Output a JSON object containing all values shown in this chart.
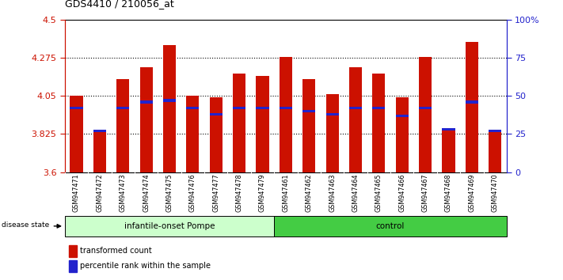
{
  "title": "GDS4410 / 210056_at",
  "samples": [
    "GSM947471",
    "GSM947472",
    "GSM947473",
    "GSM947474",
    "GSM947475",
    "GSM947476",
    "GSM947477",
    "GSM947478",
    "GSM947479",
    "GSM947461",
    "GSM947462",
    "GSM947463",
    "GSM947464",
    "GSM947465",
    "GSM947466",
    "GSM947467",
    "GSM947468",
    "GSM947469",
    "GSM947470"
  ],
  "transformed_counts": [
    4.05,
    3.84,
    4.15,
    4.22,
    4.35,
    4.05,
    4.04,
    4.18,
    4.17,
    4.28,
    4.15,
    4.06,
    4.22,
    4.18,
    4.04,
    4.28,
    3.85,
    4.37,
    3.84
  ],
  "percentile_ranks": [
    0.42,
    0.27,
    0.42,
    0.46,
    0.47,
    0.42,
    0.38,
    0.42,
    0.42,
    0.42,
    0.4,
    0.38,
    0.42,
    0.42,
    0.37,
    0.42,
    0.28,
    0.46,
    0.27
  ],
  "bar_color": "#cc1100",
  "blue_color": "#2222cc",
  "y_min": 3.6,
  "y_max": 4.5,
  "yticks_left": [
    3.6,
    3.825,
    4.05,
    4.275,
    4.5
  ],
  "yticks_right": [
    0,
    25,
    50,
    75,
    100
  ],
  "group1_label": "infantile-onset Pompe",
  "group2_label": "control",
  "group1_count": 9,
  "group2_count": 10,
  "disease_state_label": "disease state",
  "legend1": "transformed count",
  "legend2": "percentile rank within the sample",
  "bar_width": 0.55,
  "bg_color": "#ffffff",
  "plot_bg": "#ffffff",
  "axis_color_left": "#cc1100",
  "axis_color_right": "#2222cc",
  "group1_bg": "#ccffcc",
  "group2_bg": "#44cc44",
  "sample_area_bg": "#cccccc"
}
